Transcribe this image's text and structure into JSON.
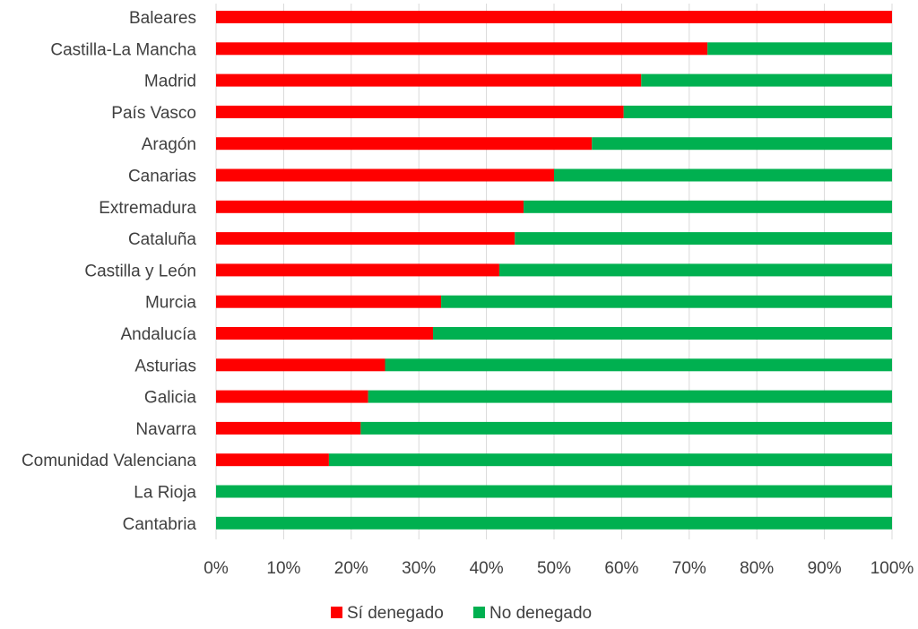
{
  "chart_data": {
    "type": "bar",
    "orientation": "horizontal",
    "stacked": "percent",
    "categories": [
      "Baleares",
      "Castilla-La Mancha",
      "Madrid",
      "País Vasco",
      "Aragón",
      "Canarias",
      "Extremadura",
      "Cataluña",
      "Castilla y León",
      "Murcia",
      "Andalucía",
      "Asturias",
      "Galicia",
      "Navarra",
      "Comunidad Valenciana",
      "La Rioja",
      "Cantabria"
    ],
    "series": [
      {
        "name": "Sí denegado",
        "color": "#ff0000",
        "values": [
          100,
          72.7,
          62.9,
          60.3,
          55.6,
          50.0,
          45.5,
          44.2,
          41.9,
          33.3,
          32.1,
          25.0,
          22.5,
          21.4,
          16.7,
          0,
          0
        ]
      },
      {
        "name": "No denegado",
        "color": "#00b050",
        "values": [
          0,
          27.3,
          37.1,
          39.7,
          44.4,
          50.0,
          54.5,
          55.8,
          58.1,
          66.7,
          67.9,
          75.0,
          77.5,
          78.6,
          83.3,
          100,
          100
        ]
      }
    ],
    "xlim": [
      0,
      100
    ],
    "xticks": [
      "0%",
      "10%",
      "20%",
      "30%",
      "40%",
      "50%",
      "60%",
      "70%",
      "80%",
      "90%",
      "100%"
    ],
    "grid": "vertical",
    "legend": "bottom"
  }
}
